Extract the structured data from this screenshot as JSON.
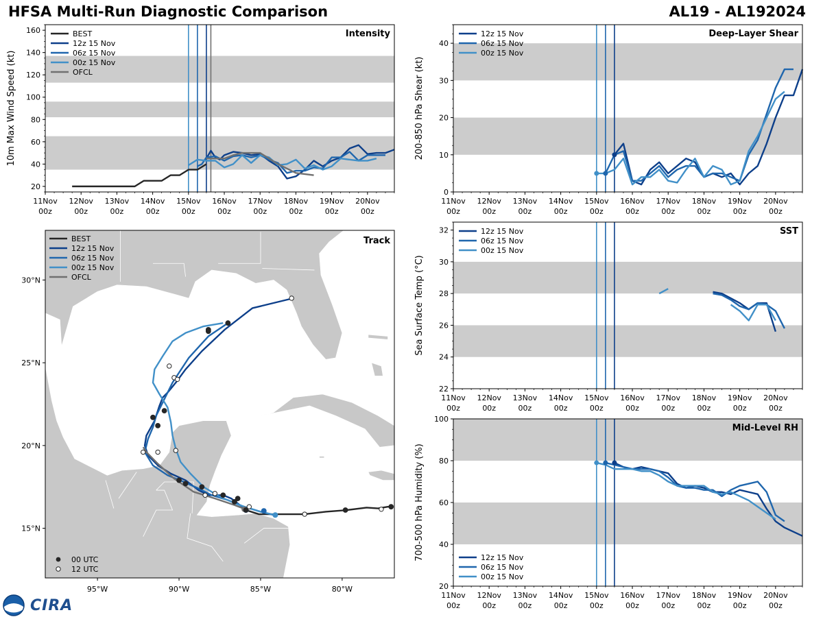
{
  "header": {
    "title": "HFSA Multi-Run Diagnostic Comparison",
    "storm_id": "AL19 - AL192024"
  },
  "logo": {
    "text": "CIRA",
    "icon": "noaa-logo-icon"
  },
  "colors": {
    "best": "#262626",
    "run12": "#0d3f8a",
    "run06": "#1f66ad",
    "run00": "#4190c8",
    "ofcl": "#707070",
    "band": "#cccccc",
    "land": "#c8c8c8"
  },
  "time_axis": {
    "labels": [
      "11Nov\n00z",
      "12Nov\n00z",
      "13Nov\n00z",
      "14Nov\n00z",
      "15Nov\n00z",
      "16Nov\n00z",
      "17Nov\n00z",
      "18Nov\n00z",
      "19Nov\n00z",
      "20Nov\n00z"
    ],
    "init_times": [
      96,
      102,
      108
    ]
  },
  "chart_data": [
    {
      "id": "intensity",
      "type": "line",
      "title": "Intensity",
      "ylabel": "10m Max Wind Speed (kt)",
      "xlabel": "",
      "ylim": [
        15,
        165
      ],
      "xlim": [
        0,
        234
      ],
      "yticks": [
        20,
        40,
        60,
        80,
        100,
        120,
        140,
        160
      ],
      "bands": [
        [
          35,
          65
        ],
        [
          82,
          96
        ],
        [
          113,
          137
        ]
      ],
      "init_time_lines": [
        96,
        102,
        108,
        111
      ],
      "series": [
        {
          "name": "BEST",
          "key": "best",
          "x": [
            18,
            24,
            30,
            36,
            42,
            48,
            54,
            60,
            66,
            72,
            78,
            84,
            90,
            96,
            102,
            108
          ],
          "y": [
            20,
            20,
            20,
            20,
            20,
            20,
            20,
            20,
            25,
            25,
            25,
            30,
            30,
            35,
            35,
            40
          ]
        },
        {
          "name": "12z 15 Nov",
          "key": "run12",
          "x": [
            108,
            111,
            114,
            117,
            120,
            126,
            132,
            138,
            144,
            150,
            156,
            162,
            168,
            174,
            180,
            186,
            192,
            198,
            204,
            210,
            216,
            222,
            228,
            234
          ],
          "y": [
            45,
            52,
            46,
            44,
            48,
            51,
            50,
            48,
            49,
            43,
            38,
            27,
            29,
            35,
            43,
            38,
            43,
            46,
            54,
            57,
            49,
            50,
            50,
            53
          ]
        },
        {
          "name": "06z 15 Nov",
          "key": "run06",
          "x": [
            102,
            105,
            108,
            114,
            120,
            126,
            132,
            138,
            144,
            150,
            156,
            162,
            168,
            174,
            180,
            186,
            192,
            198,
            204,
            210,
            216,
            222,
            228
          ],
          "y": [
            38,
            40,
            46,
            47,
            43,
            47,
            48,
            46,
            48,
            44,
            41,
            32,
            34,
            34,
            37,
            36,
            46,
            46,
            51,
            43,
            48,
            48,
            48
          ]
        },
        {
          "name": "00z 15 Nov",
          "key": "run00",
          "x": [
            96,
            102,
            108,
            114,
            120,
            126,
            132,
            138,
            144,
            150,
            156,
            162,
            168,
            174,
            180,
            186,
            192,
            198,
            204,
            210,
            216,
            222
          ],
          "y": [
            39,
            44,
            43,
            43,
            37,
            40,
            48,
            41,
            48,
            46,
            39,
            40,
            44,
            36,
            39,
            35,
            38,
            45,
            44,
            43,
            43,
            45
          ]
        },
        {
          "name": "OFCL",
          "key": "ofcl",
          "x": [
            108,
            114,
            120,
            126,
            132,
            144,
            156,
            168,
            180
          ],
          "y": [
            45,
            45,
            45,
            48,
            50,
            50,
            40,
            32,
            30
          ]
        }
      ]
    },
    {
      "id": "shear",
      "type": "line",
      "title": "Deep-Layer Shear",
      "ylabel": "200-850 hPa Shear (kt)",
      "xlabel": "",
      "ylim": [
        0,
        45
      ],
      "xlim": [
        0,
        234
      ],
      "yticks": [
        0,
        10,
        20,
        30,
        40
      ],
      "bands": [
        [
          10,
          20
        ],
        [
          30,
          40
        ]
      ],
      "init_time_lines": [
        96,
        102,
        108
      ],
      "series": [
        {
          "name": "12z 15 Nov",
          "key": "run12",
          "x": [
            108,
            114,
            120,
            126,
            132,
            138,
            144,
            150,
            156,
            162,
            168,
            174,
            180,
            186,
            192,
            198,
            204,
            210,
            216,
            222,
            228,
            234
          ],
          "y": [
            10,
            13,
            3,
            2,
            6,
            8,
            5,
            7,
            9,
            8,
            4,
            5,
            4,
            5,
            2,
            5,
            7,
            13,
            20,
            26,
            26,
            33
          ]
        },
        {
          "name": "06z 15 Nov",
          "key": "run06",
          "x": [
            102,
            108,
            114,
            120,
            126,
            132,
            138,
            144,
            150,
            156,
            162,
            168,
            174,
            180,
            186,
            192,
            198,
            204,
            210,
            216,
            222,
            228
          ],
          "y": [
            5,
            10,
            11,
            3,
            3,
            5,
            7,
            4,
            6,
            7,
            7,
            4,
            5,
            5,
            4,
            3,
            10,
            14,
            21,
            28,
            33,
            33
          ]
        },
        {
          "name": "00z 15 Nov",
          "key": "run00",
          "x": [
            96,
            102,
            108,
            114,
            120,
            126,
            132,
            138,
            144,
            150,
            156,
            162,
            168,
            174,
            180,
            186,
            192,
            198,
            204,
            210,
            216,
            222
          ],
          "y": [
            5,
            5,
            6,
            9,
            2,
            4,
            4,
            6,
            3,
            2.5,
            6,
            9,
            4,
            7,
            6,
            2,
            3,
            11,
            15,
            20,
            25,
            27
          ]
        }
      ],
      "markers": [
        {
          "key": "run00",
          "x": 96,
          "y": 5
        },
        {
          "key": "run06",
          "x": 102,
          "y": 5
        },
        {
          "key": "run12",
          "x": 108,
          "y": 10
        }
      ]
    },
    {
      "id": "track",
      "type": "scatter",
      "title": "Track",
      "xlim": [
        -98.2,
        -76.8
      ],
      "ylim": [
        12,
        33
      ],
      "xticks": [
        -95,
        -90,
        -85,
        -80
      ],
      "xtick_labels": [
        "95°W",
        "90°W",
        "85°W",
        "80°W"
      ],
      "yticks": [
        15,
        20,
        25,
        30
      ],
      "ytick_labels": [
        "15°N",
        "20°N",
        "25°N",
        "30°N"
      ],
      "series": [
        {
          "name": "BEST",
          "key": "best",
          "lon": [
            -77,
            -77.2,
            -77.8,
            -78.5,
            -79.7,
            -81,
            -82.3,
            -83.4,
            -84.3,
            -85.1,
            -85.9
          ],
          "lat": [
            16.3,
            16.3,
            16.2,
            16.25,
            16.1,
            16,
            15.85,
            15.85,
            15.85,
            15.85,
            16.1
          ]
        },
        {
          "name": "12z 15 Nov",
          "key": "run12",
          "lon": [
            -85.9,
            -86.4,
            -86.8,
            -87.3,
            -88.2,
            -88.8,
            -89.6,
            -90.5,
            -91.3,
            -91.9,
            -92.1,
            -92.0,
            -91.5,
            -91.2,
            -91.0,
            -90.7,
            -90.2,
            -89.6,
            -88.6,
            -87.2,
            -85.5,
            -83.0
          ],
          "lat": [
            16.1,
            16.5,
            16.8,
            17.0,
            17.0,
            17.3,
            17.9,
            18.3,
            18.8,
            19.4,
            20.0,
            20.6,
            21.5,
            22.4,
            22.9,
            23.2,
            23.8,
            24.6,
            25.7,
            27.0,
            28.3,
            28.9
          ]
        },
        {
          "name": "06z 15 Nov",
          "key": "run06",
          "lon": [
            -84.2,
            -85.0,
            -86.0,
            -87.0,
            -88.0,
            -88.8,
            -89.7,
            -90.7,
            -91.6,
            -92.1,
            -91.9,
            -91.6,
            -91.4,
            -90.9,
            -90.4,
            -89.4,
            -88.2,
            -87.0
          ],
          "lat": [
            15.8,
            16.0,
            16.3,
            16.7,
            17.0,
            17.4,
            17.8,
            18.2,
            18.8,
            19.6,
            20.4,
            21.1,
            21.8,
            22.8,
            23.8,
            25.3,
            26.6,
            27.4
          ]
        },
        {
          "name": "00z 15 Nov",
          "key": "run00",
          "lon": [
            -84.1,
            -85.0,
            -86.3,
            -87.5,
            -88.5,
            -89.3,
            -89.9,
            -90.2,
            -90.4,
            -90.5,
            -90.7,
            -91.2,
            -91.6,
            -91.5,
            -91.0,
            -90.4,
            -89.6,
            -88.5,
            -87.3
          ],
          "lat": [
            15.8,
            16.0,
            16.4,
            16.9,
            17.5,
            18.3,
            19.0,
            19.8,
            20.6,
            21.4,
            22.3,
            23.1,
            23.8,
            24.6,
            25.4,
            26.3,
            26.8,
            27.2,
            27.4
          ]
        },
        {
          "name": "OFCL",
          "key": "ofcl",
          "lon": [
            -85.8,
            -86.6,
            -87.8,
            -89.1,
            -90.3,
            -91.3,
            -92.0,
            -92.2
          ],
          "lat": [
            16.1,
            16.4,
            16.8,
            17.2,
            18.0,
            18.9,
            19.6,
            19.9
          ]
        }
      ],
      "markers_00utc": [
        [
          -77,
          16.3
        ],
        [
          -79.8,
          16.1
        ],
        [
          -85.9,
          16.1
        ],
        [
          -86.4,
          16.8
        ],
        [
          -86.6,
          16.6
        ],
        [
          -87.3,
          17.0
        ],
        [
          -88.6,
          17.5
        ],
        [
          -89.6,
          17.7
        ],
        [
          -90.0,
          17.9
        ],
        [
          -91.3,
          21.2
        ],
        [
          -91.6,
          21.7
        ],
        [
          -90.9,
          22.1
        ],
        [
          -88.2,
          26.9
        ],
        [
          -88.2,
          27.0
        ],
        [
          -87.0,
          27.4
        ]
      ],
      "markers_12utc": [
        [
          -77.6,
          16.15
        ],
        [
          -82.3,
          15.85
        ],
        [
          -85.7,
          16.3
        ],
        [
          -87.8,
          17.1
        ],
        [
          -88.4,
          17.0
        ],
        [
          -92.2,
          19.6
        ],
        [
          -91.3,
          19.6
        ],
        [
          -90.2,
          19.7
        ],
        [
          -90.3,
          24.1
        ],
        [
          -90.1,
          24.0
        ],
        [
          -90.6,
          24.8
        ],
        [
          -83.1,
          28.9
        ]
      ],
      "init_points": [
        {
          "key": "run00",
          "lon": -84.1,
          "lat": 15.8
        },
        {
          "key": "run06",
          "lon": -84.8,
          "lat": 16.05
        },
        {
          "key": "run12",
          "lon": -85.9,
          "lat": 16.1
        },
        {
          "key": "ofcl",
          "lon": -86.0,
          "lat": 16.15
        }
      ],
      "marker_legend": [
        "00 UTC",
        "12 UTC"
      ]
    },
    {
      "id": "sst",
      "type": "line",
      "title": "SST",
      "ylabel": "Sea Surface Temp (°C)",
      "xlabel": "",
      "ylim": [
        22,
        32.5
      ],
      "xlim": [
        0,
        234
      ],
      "yticks": [
        22,
        24,
        26,
        28,
        30,
        32
      ],
      "bands": [
        [
          24,
          26
        ],
        [
          28,
          30
        ]
      ],
      "init_time_lines": [
        96,
        102,
        108
      ],
      "series": [
        {
          "name": "12z 15 Nov",
          "key": "run12",
          "x": [
            174,
            180,
            186,
            192,
            198,
            204,
            210,
            216
          ],
          "y": [
            28.1,
            28.0,
            27.7,
            27.4,
            27.0,
            27.4,
            27.4,
            25.6
          ]
        },
        {
          "name": "06z 15 Nov",
          "key": "run06",
          "x": [
            174,
            180,
            186,
            192,
            198,
            204,
            210,
            216,
            222
          ],
          "y": [
            28.0,
            27.9,
            27.6,
            27.2,
            27.0,
            27.4,
            27.3,
            26.9,
            25.8
          ]
        },
        {
          "name": "00z 15 Nov",
          "key": "run00",
          "x": [
            138,
            144,
            186,
            192,
            198,
            204,
            210,
            216
          ],
          "y": [
            28.0,
            28.3,
            27.3,
            26.9,
            26.3,
            27.3,
            27.3,
            26.3
          ]
        }
      ],
      "gaps": {
        "run00": [
          1
        ]
      }
    },
    {
      "id": "rh",
      "type": "line",
      "title": "Mid-Level RH",
      "ylabel": "700-500 hPa Humidity (%)",
      "xlabel": "",
      "ylim": [
        20,
        100
      ],
      "xlim": [
        0,
        234
      ],
      "yticks": [
        20,
        40,
        60,
        80,
        100
      ],
      "bands": [
        [
          40,
          60
        ],
        [
          80,
          100
        ]
      ],
      "init_time_lines": [
        96,
        102,
        108
      ],
      "series": [
        {
          "name": "12z 15 Nov",
          "key": "run12",
          "x": [
            108,
            114,
            120,
            126,
            132,
            138,
            144,
            150,
            156,
            162,
            168,
            174,
            180,
            186,
            192,
            198,
            204,
            210,
            216,
            222,
            228,
            234
          ],
          "y": [
            79,
            77,
            76,
            77,
            76,
            75,
            74,
            69,
            67,
            68,
            67,
            65,
            65,
            64,
            66,
            65,
            64,
            57,
            51,
            48,
            46,
            44
          ]
        },
        {
          "name": "06z 15 Nov",
          "key": "run06",
          "x": [
            102,
            108,
            114,
            120,
            126,
            132,
            138,
            144,
            150,
            156,
            162,
            168,
            174,
            180,
            186,
            192,
            198,
            204,
            210,
            216,
            222
          ],
          "y": [
            79,
            78,
            77,
            76,
            76,
            76,
            75,
            72,
            68,
            67,
            67,
            66,
            66,
            63,
            66,
            68,
            69,
            70,
            65,
            54,
            51
          ]
        },
        {
          "name": "00z 15 Nov",
          "key": "run00",
          "x": [
            96,
            102,
            108,
            114,
            120,
            126,
            132,
            138,
            144,
            150,
            156,
            162,
            168,
            174,
            180,
            186,
            192,
            198,
            204,
            210,
            216
          ],
          "y": [
            79,
            78,
            76,
            76,
            76,
            75,
            75,
            73,
            70,
            68,
            68,
            68,
            68,
            65,
            64,
            65,
            63,
            61,
            58,
            55,
            52
          ]
        }
      ],
      "markers": [
        {
          "key": "run00",
          "x": 96,
          "y": 79
        },
        {
          "key": "run06",
          "x": 102,
          "y": 79
        },
        {
          "key": "run12",
          "x": 108,
          "y": 79
        }
      ]
    }
  ]
}
